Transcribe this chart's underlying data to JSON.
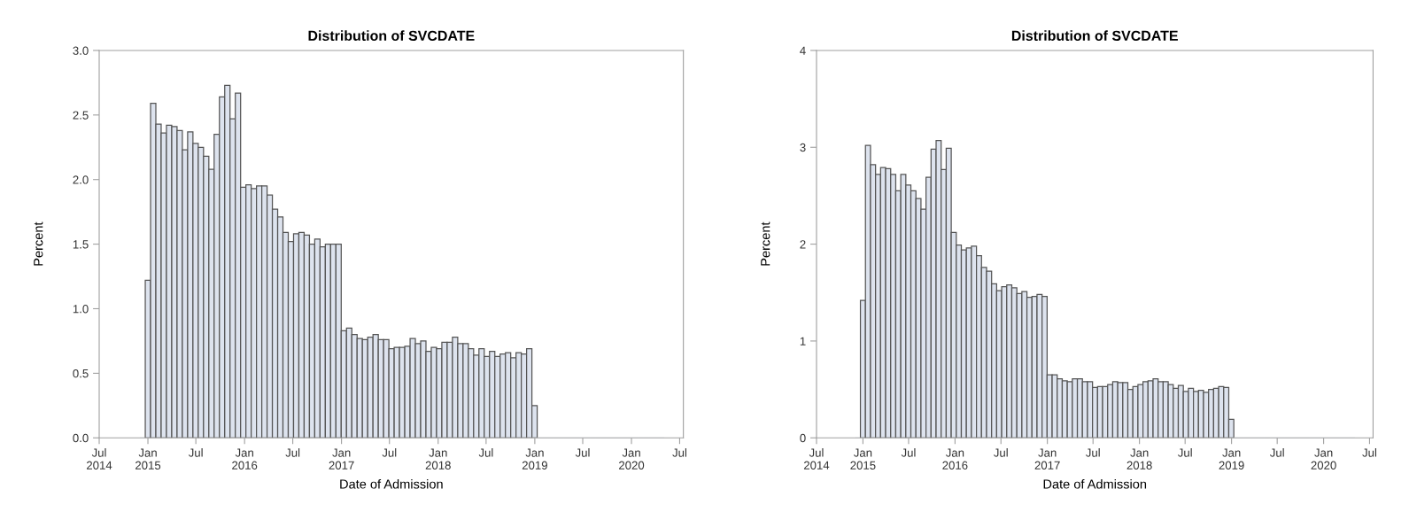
{
  "chart_data": [
    {
      "type": "histogram",
      "title": "Distribution of SVCDATE",
      "xlabel": "Date of Admission",
      "ylabel": "Percent",
      "color": "#dde3ee",
      "grid": false,
      "legend": false,
      "bins": [
        "2014-12-02",
        "2014-12-22",
        "2015-01-11",
        "2015-01-31",
        "2015-02-20",
        "2015-03-12",
        "2015-04-01",
        "2015-04-21",
        "2015-05-11",
        "2015-05-31",
        "2015-06-20",
        "2015-07-10",
        "2015-07-30",
        "2015-08-19",
        "2015-09-08",
        "2015-09-28",
        "2015-10-18",
        "2015-11-07",
        "2015-11-27",
        "2015-12-17",
        "2016-01-06",
        "2016-01-26",
        "2016-02-15",
        "2016-03-06",
        "2016-03-26",
        "2016-04-15",
        "2016-05-05",
        "2016-05-25",
        "2016-06-14",
        "2016-07-04",
        "2016-07-24",
        "2016-08-13",
        "2016-09-02",
        "2016-09-22",
        "2016-10-12",
        "2016-11-01",
        "2016-11-21",
        "2016-12-11",
        "2016-12-31",
        "2017-01-20",
        "2017-02-09",
        "2017-03-01",
        "2017-03-21",
        "2017-04-10",
        "2017-04-30",
        "2017-05-20",
        "2017-06-09",
        "2017-06-29",
        "2017-07-19",
        "2017-08-08",
        "2017-08-28",
        "2017-09-17",
        "2017-10-07",
        "2017-10-27",
        "2017-11-16",
        "2017-12-06",
        "2017-12-26",
        "2018-01-15",
        "2018-02-04",
        "2018-02-24",
        "2018-03-16",
        "2018-04-05",
        "2018-04-25",
        "2018-05-15",
        "2018-06-04",
        "2018-06-24",
        "2018-07-14",
        "2018-08-03",
        "2018-08-23",
        "2018-09-12",
        "2018-10-02",
        "2018-10-22",
        "2018-11-11",
        "2018-12-01",
        "2018-12-21",
        "2019-01-10",
        "2019-01-30",
        "2019-02-19",
        "2019-03-11",
        "2019-03-31",
        "2019-04-20",
        "2019-05-10",
        "2019-05-30",
        "2019-06-19",
        "2019-07-09",
        "2019-07-29",
        "2019-08-18",
        "2019-09-07",
        "2019-09-27",
        "2019-10-17",
        "2019-11-06",
        "2019-11-26",
        "2019-12-16",
        "2020-01-05",
        "2020-01-25",
        "2020-02-14",
        "2020-03-05",
        "2020-03-25",
        "2020-04-14",
        "2020-05-04"
      ],
      "values": [
        0,
        1.22,
        2.59,
        2.43,
        2.36,
        2.42,
        2.41,
        2.38,
        2.23,
        2.37,
        2.28,
        2.25,
        2.18,
        2.08,
        2.35,
        2.64,
        2.73,
        2.47,
        2.67,
        1.94,
        1.96,
        1.93,
        1.95,
        1.95,
        1.88,
        1.77,
        1.71,
        1.59,
        1.52,
        1.58,
        1.59,
        1.57,
        1.5,
        1.54,
        1.48,
        1.5,
        1.5,
        1.5,
        0.83,
        0.85,
        0.8,
        0.77,
        0.76,
        0.78,
        0.8,
        0.76,
        0.76,
        0.69,
        0.7,
        0.7,
        0.71,
        0.77,
        0.73,
        0.75,
        0.67,
        0.7,
        0.69,
        0.74,
        0.74,
        0.78,
        0.73,
        0.73,
        0.69,
        0.64,
        0.69,
        0.63,
        0.67,
        0.63,
        0.65,
        0.66,
        0.62,
        0.66,
        0.65,
        0.69,
        0.25,
        0,
        0,
        0,
        0,
        0,
        0,
        0,
        0,
        0,
        0,
        0,
        0,
        0,
        0,
        0,
        0,
        0,
        0,
        0,
        0,
        0,
        0,
        0,
        0
      ],
      "xlim": [
        "2014-07-01",
        "2020-07-15"
      ],
      "xticks": [
        {
          "value": "2014-07-01",
          "label": "Jul\n2014"
        },
        {
          "value": "2015-01-01",
          "label": "Jan\n2015"
        },
        {
          "value": "2015-07-01",
          "label": "Jul"
        },
        {
          "value": "2016-01-01",
          "label": "Jan\n2016"
        },
        {
          "value": "2016-07-01",
          "label": "Jul"
        },
        {
          "value": "2017-01-01",
          "label": "Jan\n2017"
        },
        {
          "value": "2017-07-01",
          "label": "Jul"
        },
        {
          "value": "2018-01-01",
          "label": "Jan\n2018"
        },
        {
          "value": "2018-07-01",
          "label": "Jul"
        },
        {
          "value": "2019-01-01",
          "label": "Jan\n2019"
        },
        {
          "value": "2019-07-01",
          "label": "Jul"
        },
        {
          "value": "2020-01-01",
          "label": "Jan\n2020"
        },
        {
          "value": "2020-07-01",
          "label": "Jul"
        }
      ],
      "ylim": [
        0,
        3.0
      ],
      "yticks": [
        {
          "value": 0,
          "label": "0.0"
        },
        {
          "value": 0.5,
          "label": "0.5"
        },
        {
          "value": 1.0,
          "label": "1.0"
        },
        {
          "value": 1.5,
          "label": "1.5"
        },
        {
          "value": 2.0,
          "label": "2.0"
        },
        {
          "value": 2.5,
          "label": "2.5"
        },
        {
          "value": 3.0,
          "label": "3.0"
        }
      ]
    },
    {
      "type": "histogram",
      "title": "Distribution of SVCDATE",
      "xlabel": "Date of Admission",
      "ylabel": "Percent",
      "color": "#dde3ee",
      "grid": false,
      "legend": false,
      "bins": [
        "2014-12-02",
        "2014-12-22",
        "2015-01-11",
        "2015-01-31",
        "2015-02-20",
        "2015-03-12",
        "2015-04-01",
        "2015-04-21",
        "2015-05-11",
        "2015-05-31",
        "2015-06-20",
        "2015-07-10",
        "2015-07-30",
        "2015-08-19",
        "2015-09-08",
        "2015-09-28",
        "2015-10-18",
        "2015-11-07",
        "2015-11-27",
        "2015-12-17",
        "2016-01-06",
        "2016-01-26",
        "2016-02-15",
        "2016-03-06",
        "2016-03-26",
        "2016-04-15",
        "2016-05-05",
        "2016-05-25",
        "2016-06-14",
        "2016-07-04",
        "2016-07-24",
        "2016-08-13",
        "2016-09-02",
        "2016-09-22",
        "2016-10-12",
        "2016-11-01",
        "2016-11-21",
        "2016-12-11",
        "2016-12-31",
        "2017-01-20",
        "2017-02-09",
        "2017-03-01",
        "2017-03-21",
        "2017-04-10",
        "2017-04-30",
        "2017-05-20",
        "2017-06-09",
        "2017-06-29",
        "2017-07-19",
        "2017-08-08",
        "2017-08-28",
        "2017-09-17",
        "2017-10-07",
        "2017-10-27",
        "2017-11-16",
        "2017-12-06",
        "2017-12-26",
        "2018-01-15",
        "2018-02-04",
        "2018-02-24",
        "2018-03-16",
        "2018-04-05",
        "2018-04-25",
        "2018-05-15",
        "2018-06-04",
        "2018-06-24",
        "2018-07-14",
        "2018-08-03",
        "2018-08-23",
        "2018-09-12",
        "2018-10-02",
        "2018-10-22",
        "2018-11-11",
        "2018-12-01",
        "2018-12-21",
        "2019-01-10",
        "2019-01-30",
        "2019-02-19",
        "2019-03-11",
        "2019-03-31",
        "2019-04-20",
        "2019-05-10",
        "2019-05-30",
        "2019-06-19",
        "2019-07-09",
        "2019-07-29",
        "2019-08-18",
        "2019-09-07",
        "2019-09-27",
        "2019-10-17",
        "2019-11-06",
        "2019-11-26",
        "2019-12-16",
        "2020-01-05",
        "2020-01-25",
        "2020-02-14",
        "2020-03-05",
        "2020-03-25",
        "2020-04-14",
        "2020-05-04"
      ],
      "values": [
        0,
        1.42,
        3.02,
        2.82,
        2.72,
        2.79,
        2.78,
        2.72,
        2.55,
        2.72,
        2.61,
        2.55,
        2.47,
        2.36,
        2.69,
        2.98,
        3.07,
        2.77,
        2.99,
        2.12,
        1.99,
        1.94,
        1.96,
        1.98,
        1.88,
        1.76,
        1.72,
        1.59,
        1.52,
        1.56,
        1.58,
        1.55,
        1.49,
        1.51,
        1.45,
        1.46,
        1.48,
        1.46,
        0.65,
        0.65,
        0.61,
        0.59,
        0.58,
        0.61,
        0.61,
        0.58,
        0.58,
        0.52,
        0.53,
        0.53,
        0.55,
        0.58,
        0.57,
        0.57,
        0.5,
        0.53,
        0.55,
        0.58,
        0.59,
        0.61,
        0.58,
        0.58,
        0.55,
        0.51,
        0.54,
        0.48,
        0.51,
        0.48,
        0.49,
        0.47,
        0.5,
        0.51,
        0.53,
        0.52,
        0.19,
        0,
        0,
        0,
        0,
        0,
        0,
        0,
        0,
        0,
        0,
        0,
        0,
        0,
        0,
        0,
        0,
        0,
        0,
        0,
        0,
        0,
        0,
        0,
        0
      ],
      "xlim": [
        "2014-07-01",
        "2020-07-15"
      ],
      "xticks": [
        {
          "value": "2014-07-01",
          "label": "Jul\n2014"
        },
        {
          "value": "2015-01-01",
          "label": "Jan\n2015"
        },
        {
          "value": "2015-07-01",
          "label": "Jul"
        },
        {
          "value": "2016-01-01",
          "label": "Jan\n2016"
        },
        {
          "value": "2016-07-01",
          "label": "Jul"
        },
        {
          "value": "2017-01-01",
          "label": "Jan\n2017"
        },
        {
          "value": "2017-07-01",
          "label": "Jul"
        },
        {
          "value": "2018-01-01",
          "label": "Jan\n2018"
        },
        {
          "value": "2018-07-01",
          "label": "Jul"
        },
        {
          "value": "2019-01-01",
          "label": "Jan\n2019"
        },
        {
          "value": "2019-07-01",
          "label": "Jul"
        },
        {
          "value": "2020-01-01",
          "label": "Jan\n2020"
        },
        {
          "value": "2020-07-01",
          "label": "Jul"
        }
      ],
      "ylim": [
        0,
        4
      ],
      "yticks": [
        0,
        1,
        2,
        3,
        4
      ]
    }
  ]
}
